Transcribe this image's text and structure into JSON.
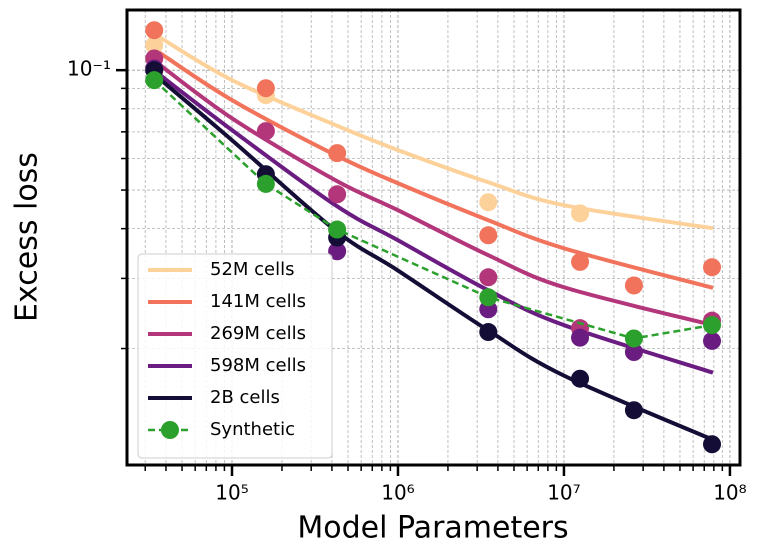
{
  "chart_data": {
    "type": "scatter",
    "xlabel": "Model Parameters",
    "ylabel": "Excess loss",
    "xscale": "log",
    "yscale": "log",
    "xlim": [
      23300,
      115000000
    ],
    "ylim": [
      0.0102,
      0.1416
    ],
    "xticks": [
      {
        "value": 100000,
        "label": "10⁵"
      },
      {
        "value": 1000000,
        "label": "10⁶"
      },
      {
        "value": 10000000,
        "label": "10⁷"
      },
      {
        "value": 100000000,
        "label": "10⁸"
      }
    ],
    "yticks": [
      {
        "value": 0.1,
        "label": "10⁻¹"
      }
    ],
    "xminorticks": [
      30000,
      40000,
      50000,
      60000,
      70000,
      80000,
      90000,
      200000,
      300000,
      400000,
      500000,
      600000,
      700000,
      800000,
      900000,
      2000000,
      3000000,
      4000000,
      5000000,
      6000000,
      7000000,
      8000000,
      9000000,
      20000000,
      30000000,
      40000000,
      50000000,
      60000000,
      70000000,
      80000000,
      90000000
    ],
    "yminorticks": [
      0.02,
      0.03,
      0.04,
      0.05,
      0.06,
      0.07,
      0.08,
      0.09
    ],
    "grid": true,
    "legend_position": "lower left",
    "fit_x": [
      35000,
      100000,
      420000,
      1000000,
      3500000,
      10000000,
      79000000
    ],
    "series": [
      {
        "name": "52M cells",
        "color": "#fdd29a",
        "x": [
          34000,
          160000,
          3500000,
          12500000
        ],
        "values": [
          0.1156,
          0.0865,
          0.0466,
          0.0437
        ],
        "fit": [
          0.1224,
          0.0944,
          0.0728,
          0.063,
          0.0523,
          0.0458,
          0.0401
        ]
      },
      {
        "name": "141M cells",
        "color": "#f2735c",
        "x": [
          34000,
          160000,
          430000,
          3500000,
          12500000,
          26400000,
          78000000
        ],
        "values": [
          0.126,
          0.0901,
          0.0619,
          0.0385,
          0.033,
          0.0288,
          0.032
        ],
        "fit": [
          0.112,
          0.0841,
          0.0612,
          0.052,
          0.042,
          0.0357,
          0.0284
        ]
      },
      {
        "name": "269M cells",
        "color": "#b3367a",
        "x": [
          34000,
          160000,
          430000,
          3500000,
          12500000,
          78000000
        ],
        "values": [
          0.107,
          0.0703,
          0.0488,
          0.0302,
          0.0225,
          0.0235
        ],
        "fit": [
          0.1047,
          0.0757,
          0.0529,
          0.0445,
          0.0343,
          0.0285,
          0.0229
        ]
      },
      {
        "name": "598M cells",
        "color": "#6a1c81",
        "x": [
          34000,
          430000,
          3500000,
          12500000,
          26400000,
          78000000
        ],
        "values": [
          0.101,
          0.0351,
          0.0251,
          0.0213,
          0.0196,
          0.0209
        ],
        "fit": [
          0.0988,
          0.0707,
          0.0458,
          0.0374,
          0.028,
          0.0229,
          0.0174
        ]
      },
      {
        "name": "2B cells",
        "color": "#140e36",
        "x": [
          34000,
          160000,
          430000,
          3500000,
          12500000,
          26400000,
          78000000
        ],
        "values": [
          0.1,
          0.0548,
          0.038,
          0.022,
          0.0168,
          0.014,
          0.0115
        ],
        "fit": [
          0.0966,
          0.0667,
          0.0396,
          0.0314,
          0.0222,
          0.0171,
          0.0118
        ]
      },
      {
        "name": "Synthetic",
        "color": "#2ca02c",
        "linestyle": "dashed",
        "x": [
          34000,
          160000,
          430000,
          3500000,
          26400000,
          78000000
        ],
        "values": [
          0.0944,
          0.0518,
          0.0398,
          0.0269,
          0.0212,
          0.0229
        ]
      }
    ]
  }
}
